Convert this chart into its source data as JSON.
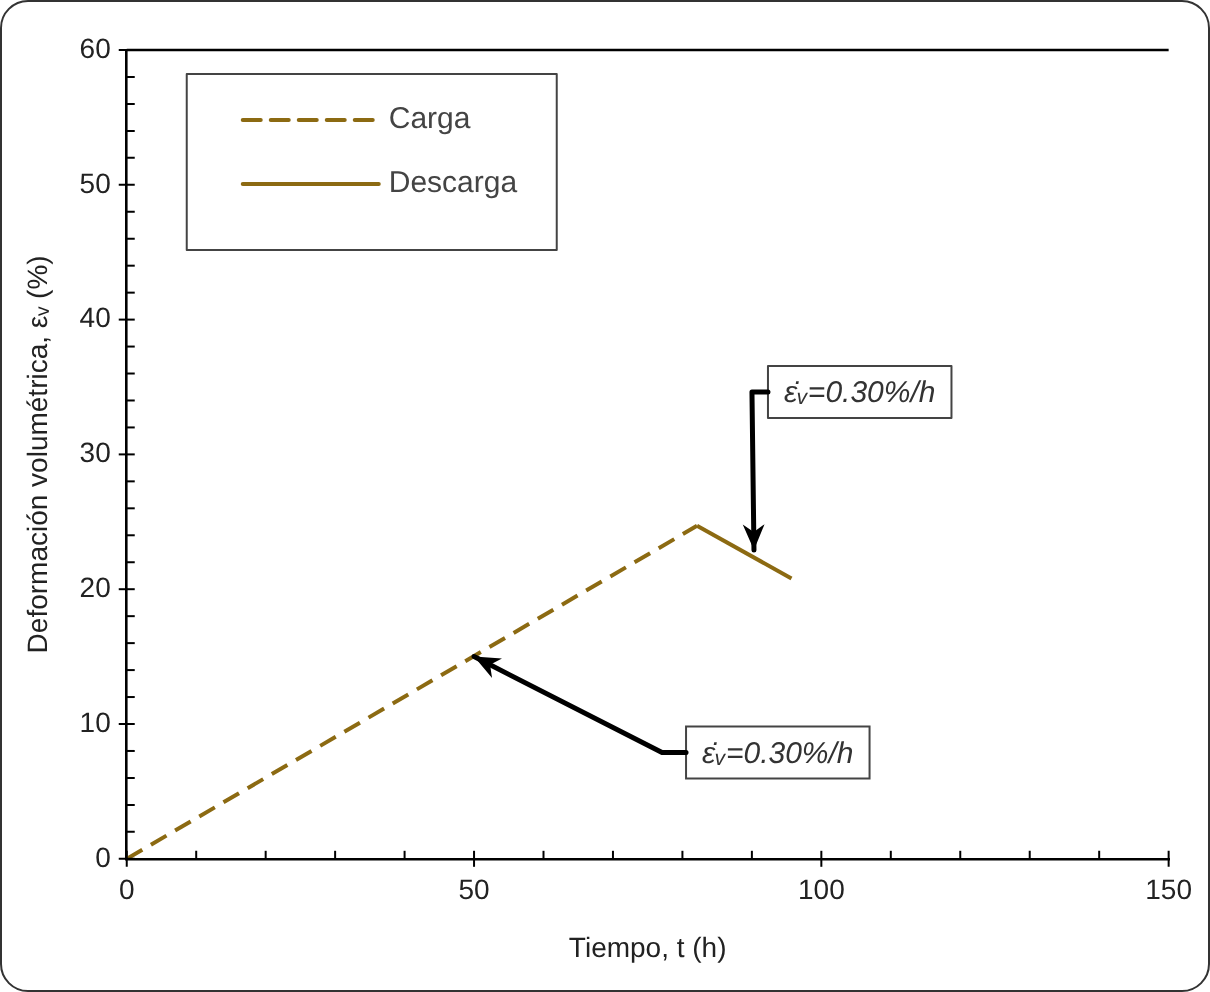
{
  "chart_data": {
    "type": "line",
    "xlabel": "Tiempo, t (h)",
    "ylabel": "Deformación volumétrica, εᵥ (%)",
    "series": [
      {
        "name": "Carga",
        "color": "#8c6a12",
        "line_style": "dashed",
        "x": [
          0,
          82.1
        ],
        "values": [
          0,
          24.7
        ]
      },
      {
        "name": "Descarga",
        "color": "#8c6a12",
        "line_style": "solid",
        "x": [
          82.1,
          95.7
        ],
        "values": [
          24.7,
          20.8
        ]
      }
    ],
    "annotations": [
      {
        "text": "ε̇ᵥ=0.30%/h",
        "x": 50,
        "y": 15
      },
      {
        "text": "ε̇ᵥ=0.30%/h",
        "x": 90.3,
        "y": 22.9
      }
    ],
    "xlim": [
      0,
      150
    ],
    "ylim": [
      0,
      60
    ],
    "xticks": [
      0,
      {
        "value": 10,
        "label": null
      },
      {
        "value": 20,
        "label": null
      },
      {
        "value": 30,
        "label": null
      },
      {
        "value": 40,
        "label": null
      },
      50,
      {
        "value": 60,
        "label": null
      },
      {
        "value": 70,
        "label": null
      },
      {
        "value": 80,
        "label": null
      },
      {
        "value": 90,
        "label": null
      },
      100,
      {
        "value": 110,
        "label": null
      },
      {
        "value": 120,
        "label": null
      },
      {
        "value": 130,
        "label": null
      },
      {
        "value": 140,
        "label": null
      },
      150
    ],
    "yticks": [
      0,
      {
        "value": 2,
        "label": null
      },
      {
        "value": 4,
        "label": null
      },
      {
        "value": 6,
        "label": null
      },
      {
        "value": 8,
        "label": null
      },
      10,
      {
        "value": 12,
        "label": null
      },
      {
        "value": 14,
        "label": null
      },
      {
        "value": 16,
        "label": null
      },
      {
        "value": 18,
        "label": null
      },
      20,
      {
        "value": 22,
        "label": null
      },
      {
        "value": 24,
        "label": null
      },
      {
        "value": 26,
        "label": null
      },
      {
        "value": 28,
        "label": null
      },
      30,
      {
        "value": 32,
        "label": null
      },
      {
        "value": 34,
        "label": null
      },
      {
        "value": 36,
        "label": null
      },
      {
        "value": 38,
        "label": null
      },
      40,
      {
        "value": 42,
        "label": null
      },
      {
        "value": 44,
        "label": null
      },
      {
        "value": 46,
        "label": null
      },
      {
        "value": 48,
        "label": null
      },
      50,
      {
        "value": 52,
        "label": null
      },
      {
        "value": 54,
        "label": null
      },
      {
        "value": 56,
        "label": null
      },
      {
        "value": 58,
        "label": null
      },
      60
    ],
    "grid": false,
    "legend": "top left",
    "marker": "none"
  }
}
